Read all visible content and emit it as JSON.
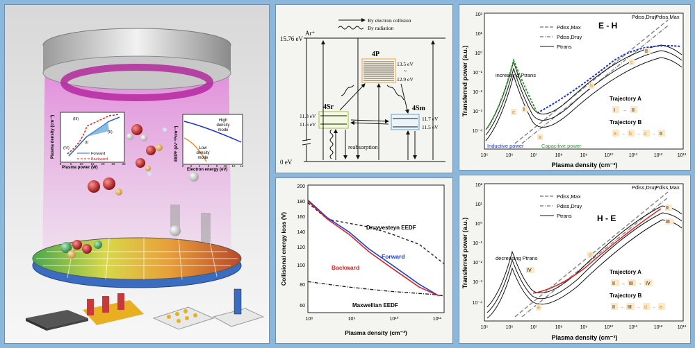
{
  "left_panel": {
    "inset_density": {
      "ylabel": "Plasma density (cm⁻³)",
      "xlabel": "Plasma power (W)",
      "ticks_x": [
        "0",
        "5",
        "10",
        "15",
        "20",
        "25",
        "30"
      ],
      "region_labels": [
        "(III)",
        "(II)",
        "(I)",
        "(IV)"
      ],
      "legend": [
        "Forward",
        "Backward"
      ]
    },
    "inset_eepf": {
      "ylabel": "EEPF (eV⁻³/²cm⁻³)",
      "xlabel": "Electron energy (eV)",
      "ticks_x": [
        "0",
        "2",
        "4",
        "6",
        "8",
        "10",
        "12",
        "14"
      ],
      "high_label": [
        "High",
        "density",
        "mode"
      ],
      "low_label": [
        "Low",
        "density",
        "mode"
      ]
    }
  },
  "energy_diagram": {
    "legend_collision": "By electron collision",
    "legend_radiation": "By radiation",
    "ion_level": "Ar⁺",
    "ion_energy": "15.76 eV",
    "ground_energy": "0 eV",
    "state_4p": "4P",
    "e_4p_top": "13.5 eV",
    "e_4p_tilde": "~",
    "e_4p_bot": "12.9 eV",
    "state_4sr": "4Sr",
    "e_4sr_top": "11.8 eV",
    "e_4sr_bot": "11.6 eV",
    "state_4sm": "4Sm",
    "e_4sm_top": "11.7 eV",
    "e_4sm_bot": "11.5 eV",
    "reabsorption": "reabsorption"
  },
  "chart_data": [
    {
      "type": "line",
      "xlabel": "Plasma density (cm⁻³)",
      "ylabel": "Collisional energy loss (V)",
      "x_scale": "log",
      "y_scale": "log",
      "xlim": [
        100000000,
        200000000000
      ],
      "ylim": [
        50,
        200
      ],
      "x_tick_labels": [
        "10⁸",
        "10⁹",
        "10¹⁰",
        "10¹¹"
      ],
      "y_tick_labels": [
        "200",
        "180",
        "160",
        "140",
        "120",
        "100",
        "80",
        "60"
      ],
      "series": [
        {
          "name": "Druyvesteyn EEDF",
          "style": "dashed",
          "color": "#222222",
          "x": [
            100000000,
            300000000,
            1000000000,
            3000000000,
            10000000000,
            50000000000,
            200000000000
          ],
          "y": [
            165,
            138,
            132,
            127,
            118,
            105,
            85
          ]
        },
        {
          "name": "Maxwellian EEDF",
          "style": "dashdot",
          "color": "#222222",
          "x": [
            100000000,
            1000000000,
            10000000000,
            100000000000,
            200000000000
          ],
          "y": [
            70,
            66,
            63,
            61,
            60
          ]
        },
        {
          "name": "Forward",
          "color": "#1a3fd6",
          "x": [
            100000000,
            300000000,
            1000000000,
            3000000000,
            10000000000,
            50000000000,
            150000000000
          ],
          "y": [
            170,
            140,
            120,
            100,
            85,
            68,
            60
          ]
        },
        {
          "name": "Backward",
          "color": "#e02020",
          "x": [
            100000000,
            300000000,
            1000000000,
            3000000000,
            10000000000,
            50000000000,
            150000000000
          ],
          "y": [
            168,
            138,
            117,
            97,
            82,
            66,
            60
          ]
        }
      ],
      "annotations": [
        "Druyvesteyn EEDF",
        "Maxwellian EEDF",
        "Forward",
        "Backward"
      ]
    },
    {
      "type": "line",
      "title": "E - H",
      "xlabel": "Plasma density (cm⁻³)",
      "ylabel": "Transferred power (a.u.)",
      "x_scale": "log",
      "y_scale": "log",
      "xlim": [
        100000,
        10000000000000
      ],
      "ylim": [
        0.0001,
        100
      ],
      "x_tick_labels": [
        "10⁵",
        "10⁶",
        "10⁷",
        "10⁸",
        "10⁹",
        "10¹⁰",
        "10¹¹",
        "10¹²",
        "10¹³"
      ],
      "y_tick_labels": [
        "10²",
        "10¹",
        "10⁰",
        "10⁻¹",
        "10⁻²",
        "10⁻³",
        "10⁻⁴"
      ],
      "legend": [
        "Pdiss,Max",
        "Pdiss,Druy",
        "Ptrans"
      ],
      "series": [
        {
          "name": "Pdiss,Max",
          "style": "dashed",
          "color": "#888888",
          "x": [
            100000,
            100000000000
          ],
          "y": [
            0.0001,
            10
          ]
        },
        {
          "name": "Pdiss,Druy",
          "style": "dashdot",
          "color": "#888888",
          "x": [
            100000,
            100000000000
          ],
          "y": [
            5e-05,
            8
          ]
        },
        {
          "name": "Ptrans",
          "color": "#111111",
          "x": [
            100000,
            300000,
            1000000,
            2000000,
            5000000,
            20000000,
            100000000,
            1000000000,
            10000000000,
            100000000000,
            500000000000,
            10000000000000
          ],
          "y": [
            0.001,
            0.01,
            0.3,
            1,
            0.1,
            0.003,
            0.01,
            0.1,
            1,
            5,
            8,
            2
          ]
        }
      ],
      "annotations": [
        "increasing Ptrans",
        "Inductive power",
        "Capacitive power",
        "Trajectory A",
        "Trajectory B",
        "Pdiss,Druy",
        "Pdiss,Max"
      ],
      "markers": [
        "I",
        "II",
        "a",
        "b",
        "c",
        "e"
      ],
      "trajectory_a": [
        "I",
        "II"
      ],
      "trajectory_b": [
        "e",
        "b",
        "c",
        "II"
      ]
    },
    {
      "type": "line",
      "title": "H - E",
      "xlabel": "Plasma density (cm⁻³)",
      "ylabel": "Transferred power (a.u.)",
      "x_scale": "log",
      "y_scale": "log",
      "xlim": [
        100000,
        10000000000000
      ],
      "ylim": [
        0.0001,
        100
      ],
      "x_tick_labels": [
        "10⁵",
        "10⁶",
        "10⁷",
        "10⁸",
        "10⁹",
        "10¹⁰",
        "10¹¹",
        "10¹²",
        "10¹³"
      ],
      "y_tick_labels": [
        "10²",
        "10¹",
        "10⁰",
        "10⁻¹",
        "10⁻²",
        "10⁻³",
        "10⁻⁴"
      ],
      "legend": [
        "Pdiss,Max",
        "Pdiss,Druy",
        "Ptrans"
      ],
      "series": [
        {
          "name": "Pdiss,Max",
          "style": "dashed",
          "color": "#888888",
          "x": [
            100000,
            100000000000
          ],
          "y": [
            0.0001,
            10
          ]
        },
        {
          "name": "Pdiss,Druy",
          "style": "dashdot",
          "color": "#888888",
          "x": [
            100000,
            100000000000
          ],
          "y": [
            5e-05,
            8
          ]
        },
        {
          "name": "Ptrans",
          "color": "#111111",
          "x": [
            100000,
            300000,
            1000000,
            2000000,
            5000000,
            20000000,
            100000000,
            1000000000,
            10000000000,
            100000000000,
            500000000000,
            10000000000000
          ],
          "y": [
            0.0005,
            0.005,
            0.05,
            0.08,
            0.01,
            0.002,
            0.005,
            0.05,
            0.5,
            5,
            8,
            3
          ]
        }
      ],
      "annotations": [
        "decreasing Ptrans",
        "Trajectory A",
        "Trajectory B",
        "Pdiss,Druy",
        "Pdiss,Max"
      ],
      "markers": [
        "II",
        "III",
        "IV",
        "d",
        "e"
      ],
      "trajectory_a": [
        "II",
        "III",
        "IV"
      ],
      "trajectory_b": [
        "II",
        "III",
        "d",
        "e"
      ]
    }
  ]
}
